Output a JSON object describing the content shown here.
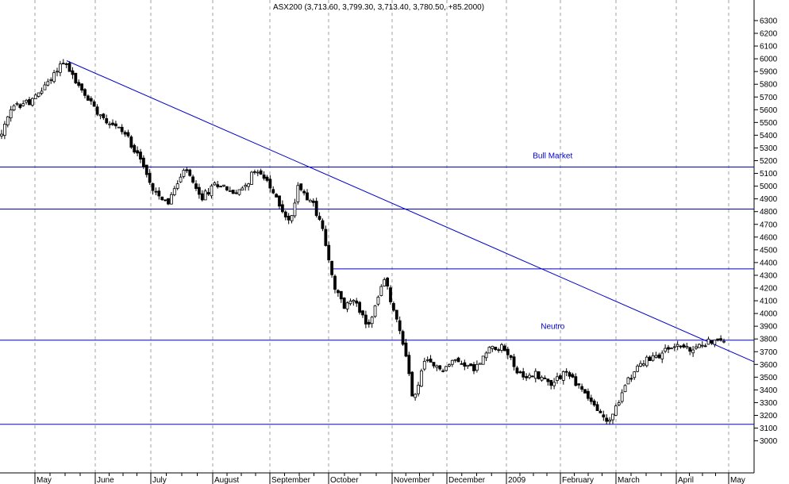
{
  "chart_data": {
    "type": "candlestick",
    "title": "ASX200 (3,713.60, 3,799.30, 3,713.40, 3,780.50, +85.2000)",
    "xlabel": "",
    "ylabel": "",
    "ylim": [
      2880,
      6360
    ],
    "yticks": [
      3000,
      3100,
      3200,
      3300,
      3400,
      3500,
      3600,
      3700,
      3800,
      3900,
      4000,
      4100,
      4200,
      4300,
      4400,
      4500,
      4600,
      4700,
      4800,
      4900,
      5000,
      5100,
      5200,
      5300,
      5400,
      5500,
      5600,
      5700,
      5800,
      5900,
      6000,
      6100,
      6200,
      6300
    ],
    "months": [
      "May",
      "June",
      "July",
      "August",
      "September",
      "October",
      "November",
      "December",
      "2009",
      "February",
      "March",
      "April",
      "May"
    ],
    "grid": "vertical-dashed",
    "colors": {
      "axis": "#000000",
      "line": "#0000cc",
      "grid": "#a0a0a0",
      "up": "#ffffff",
      "down": "#000000"
    },
    "horizontal_lines": [
      5150,
      4820,
      4350,
      3790,
      3130
    ],
    "trendline": {
      "from": [
        0,
        5985
      ],
      "to": [
        1,
        3620
      ]
    },
    "annotations": [
      {
        "text": "Bull Market",
        "x": 0.735,
        "y": 5220
      },
      {
        "text": "Neutro",
        "x": 0.735,
        "y": 3880
      }
    ],
    "anchors": [
      [
        0,
        5400
      ],
      [
        0.015,
        5620
      ],
      [
        0.045,
        5680
      ],
      [
        0.075,
        5900
      ],
      [
        0.085,
        5990
      ],
      [
        0.11,
        5750
      ],
      [
        0.14,
        5550
      ],
      [
        0.17,
        5420
      ],
      [
        0.19,
        5250
      ],
      [
        0.205,
        5020
      ],
      [
        0.23,
        4870
      ],
      [
        0.255,
        5140
      ],
      [
        0.275,
        4900
      ],
      [
        0.3,
        5030
      ],
      [
        0.325,
        4930
      ],
      [
        0.355,
        5140
      ],
      [
        0.37,
        5000
      ],
      [
        0.4,
        4700
      ],
      [
        0.41,
        5010
      ],
      [
        0.43,
        4880
      ],
      [
        0.445,
        4650
      ],
      [
        0.46,
        4200
      ],
      [
        0.475,
        4050
      ],
      [
        0.49,
        4130
      ],
      [
        0.505,
        3880
      ],
      [
        0.515,
        4010
      ],
      [
        0.53,
        4270
      ],
      [
        0.545,
        3980
      ],
      [
        0.56,
        3680
      ],
      [
        0.57,
        3300
      ],
      [
        0.585,
        3620
      ],
      [
        0.61,
        3560
      ],
      [
        0.63,
        3640
      ],
      [
        0.655,
        3560
      ],
      [
        0.68,
        3760
      ],
      [
        0.7,
        3700
      ],
      [
        0.72,
        3480
      ],
      [
        0.74,
        3530
      ],
      [
        0.76,
        3450
      ],
      [
        0.78,
        3550
      ],
      [
        0.81,
        3360
      ],
      [
        0.83,
        3200
      ],
      [
        0.84,
        3150
      ],
      [
        0.855,
        3300
      ],
      [
        0.865,
        3480
      ],
      [
        0.885,
        3600
      ],
      [
        0.91,
        3680
      ],
      [
        0.935,
        3760
      ],
      [
        0.955,
        3700
      ],
      [
        0.975,
        3780
      ]
    ]
  }
}
